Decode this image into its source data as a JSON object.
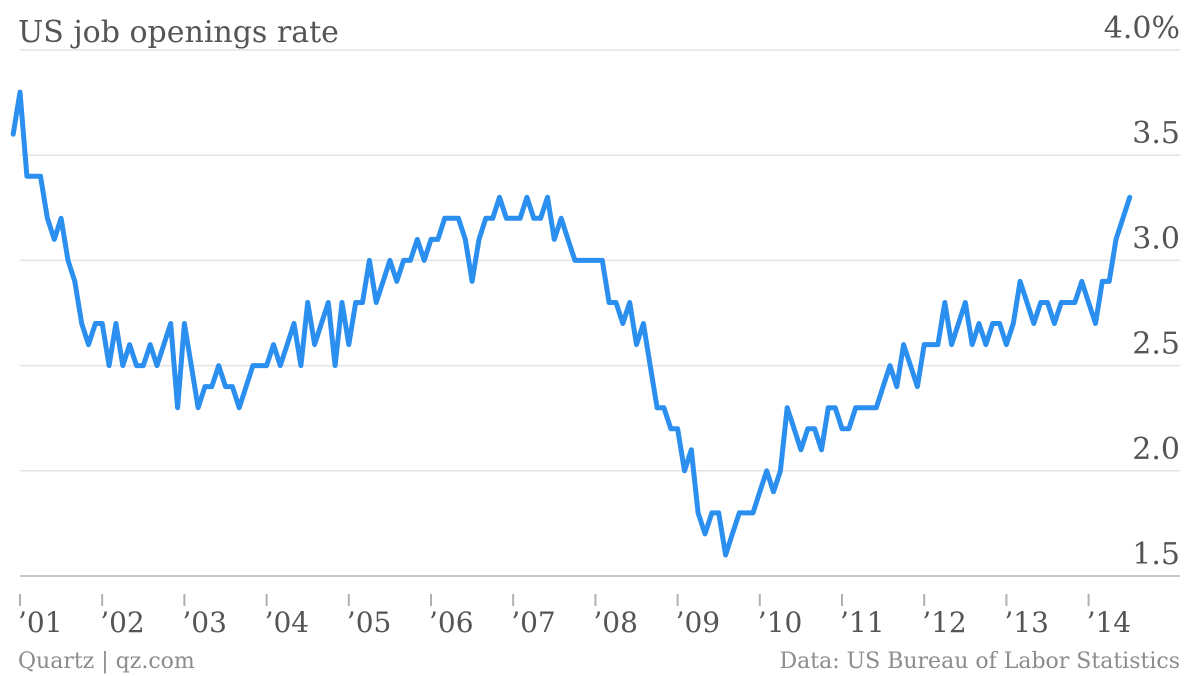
{
  "chart_data": {
    "type": "line",
    "title": "US job openings rate",
    "y_unit_label": "4.0%",
    "ylim": [
      1.5,
      4.0
    ],
    "y_ticks": [
      {
        "value": 4.0,
        "label": "4.0%"
      },
      {
        "value": 3.5,
        "label": "3.5"
      },
      {
        "value": 3.0,
        "label": "3.0"
      },
      {
        "value": 2.5,
        "label": "2.5"
      },
      {
        "value": 2.0,
        "label": "2.0"
      },
      {
        "value": 1.5,
        "label": "1.5"
      }
    ],
    "x_ticks": [
      {
        "value": 2001,
        "label": "’01"
      },
      {
        "value": 2002,
        "label": "’02"
      },
      {
        "value": 2003,
        "label": "’03"
      },
      {
        "value": 2004,
        "label": "’04"
      },
      {
        "value": 2005,
        "label": "’05"
      },
      {
        "value": 2006,
        "label": "’06"
      },
      {
        "value": 2007,
        "label": "’07"
      },
      {
        "value": 2008,
        "label": "’08"
      },
      {
        "value": 2009,
        "label": "’09"
      },
      {
        "value": 2010,
        "label": "’10"
      },
      {
        "value": 2011,
        "label": "’11"
      },
      {
        "value": 2012,
        "label": "’12"
      },
      {
        "value": 2013,
        "label": "’13"
      },
      {
        "value": 2014,
        "label": "’14"
      }
    ],
    "grid": true,
    "series": [
      {
        "color": "#2b8ff0",
        "start": "2000-12",
        "frequency": "monthly",
        "values": [
          3.6,
          3.8,
          3.4,
          3.4,
          3.4,
          3.2,
          3.1,
          3.2,
          3.0,
          2.9,
          2.7,
          2.6,
          2.7,
          2.7,
          2.5,
          2.7,
          2.5,
          2.6,
          2.5,
          2.5,
          2.6,
          2.5,
          2.6,
          2.7,
          2.3,
          2.7,
          2.5,
          2.3,
          2.4,
          2.4,
          2.5,
          2.4,
          2.4,
          2.3,
          2.4,
          2.5,
          2.5,
          2.5,
          2.6,
          2.5,
          2.6,
          2.7,
          2.5,
          2.8,
          2.6,
          2.7,
          2.8,
          2.5,
          2.8,
          2.6,
          2.8,
          2.8,
          3.0,
          2.8,
          2.9,
          3.0,
          2.9,
          3.0,
          3.0,
          3.1,
          3.0,
          3.1,
          3.1,
          3.2,
          3.2,
          3.2,
          3.1,
          2.9,
          3.1,
          3.2,
          3.2,
          3.3,
          3.2,
          3.2,
          3.2,
          3.3,
          3.2,
          3.2,
          3.3,
          3.1,
          3.2,
          3.1,
          3.0,
          3.0,
          3.0,
          3.0,
          3.0,
          2.8,
          2.8,
          2.7,
          2.8,
          2.6,
          2.7,
          2.5,
          2.3,
          2.3,
          2.2,
          2.2,
          2.0,
          2.1,
          1.8,
          1.7,
          1.8,
          1.8,
          1.6,
          1.7,
          1.8,
          1.8,
          1.8,
          1.9,
          2.0,
          1.9,
          2.0,
          2.3,
          2.2,
          2.1,
          2.2,
          2.2,
          2.1,
          2.3,
          2.3,
          2.2,
          2.2,
          2.3,
          2.3,
          2.3,
          2.3,
          2.4,
          2.5,
          2.4,
          2.6,
          2.5,
          2.4,
          2.6,
          2.6,
          2.6,
          2.8,
          2.6,
          2.7,
          2.8,
          2.6,
          2.7,
          2.6,
          2.7,
          2.7,
          2.6,
          2.7,
          2.9,
          2.8,
          2.7,
          2.8,
          2.8,
          2.7,
          2.8,
          2.8,
          2.8,
          2.9,
          2.8,
          2.7,
          2.9,
          2.9,
          3.1,
          3.2,
          3.3
        ]
      }
    ]
  },
  "footer": {
    "credit": "Quartz | qz.com",
    "source": "Data: US Bureau of Labor Statistics"
  }
}
